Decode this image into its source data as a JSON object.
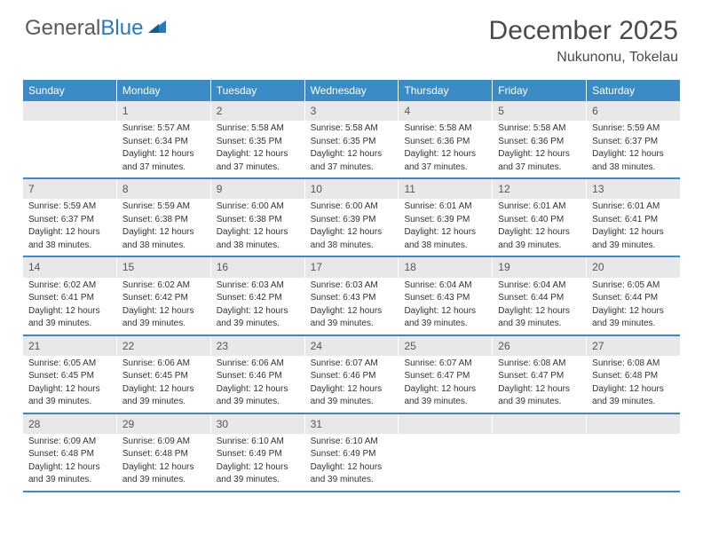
{
  "logo": {
    "part1": "General",
    "part2": "Blue"
  },
  "title": "December 2025",
  "location": "Nukunonu, Tokelau",
  "colors": {
    "header_bg": "#3b8bc6",
    "header_text": "#ffffff",
    "daynum_bg": "#e8e8e8",
    "week_border": "#3b8bc6",
    "body_text": "#333333",
    "title_text": "#4a4a4a"
  },
  "day_names": [
    "Sunday",
    "Monday",
    "Tuesday",
    "Wednesday",
    "Thursday",
    "Friday",
    "Saturday"
  ],
  "weeks": [
    [
      null,
      {
        "n": "1",
        "sr": "Sunrise: 5:57 AM",
        "ss": "Sunset: 6:34 PM",
        "d1": "Daylight: 12 hours",
        "d2": "and 37 minutes."
      },
      {
        "n": "2",
        "sr": "Sunrise: 5:58 AM",
        "ss": "Sunset: 6:35 PM",
        "d1": "Daylight: 12 hours",
        "d2": "and 37 minutes."
      },
      {
        "n": "3",
        "sr": "Sunrise: 5:58 AM",
        "ss": "Sunset: 6:35 PM",
        "d1": "Daylight: 12 hours",
        "d2": "and 37 minutes."
      },
      {
        "n": "4",
        "sr": "Sunrise: 5:58 AM",
        "ss": "Sunset: 6:36 PM",
        "d1": "Daylight: 12 hours",
        "d2": "and 37 minutes."
      },
      {
        "n": "5",
        "sr": "Sunrise: 5:58 AM",
        "ss": "Sunset: 6:36 PM",
        "d1": "Daylight: 12 hours",
        "d2": "and 37 minutes."
      },
      {
        "n": "6",
        "sr": "Sunrise: 5:59 AM",
        "ss": "Sunset: 6:37 PM",
        "d1": "Daylight: 12 hours",
        "d2": "and 38 minutes."
      }
    ],
    [
      {
        "n": "7",
        "sr": "Sunrise: 5:59 AM",
        "ss": "Sunset: 6:37 PM",
        "d1": "Daylight: 12 hours",
        "d2": "and 38 minutes."
      },
      {
        "n": "8",
        "sr": "Sunrise: 5:59 AM",
        "ss": "Sunset: 6:38 PM",
        "d1": "Daylight: 12 hours",
        "d2": "and 38 minutes."
      },
      {
        "n": "9",
        "sr": "Sunrise: 6:00 AM",
        "ss": "Sunset: 6:38 PM",
        "d1": "Daylight: 12 hours",
        "d2": "and 38 minutes."
      },
      {
        "n": "10",
        "sr": "Sunrise: 6:00 AM",
        "ss": "Sunset: 6:39 PM",
        "d1": "Daylight: 12 hours",
        "d2": "and 38 minutes."
      },
      {
        "n": "11",
        "sr": "Sunrise: 6:01 AM",
        "ss": "Sunset: 6:39 PM",
        "d1": "Daylight: 12 hours",
        "d2": "and 38 minutes."
      },
      {
        "n": "12",
        "sr": "Sunrise: 6:01 AM",
        "ss": "Sunset: 6:40 PM",
        "d1": "Daylight: 12 hours",
        "d2": "and 39 minutes."
      },
      {
        "n": "13",
        "sr": "Sunrise: 6:01 AM",
        "ss": "Sunset: 6:41 PM",
        "d1": "Daylight: 12 hours",
        "d2": "and 39 minutes."
      }
    ],
    [
      {
        "n": "14",
        "sr": "Sunrise: 6:02 AM",
        "ss": "Sunset: 6:41 PM",
        "d1": "Daylight: 12 hours",
        "d2": "and 39 minutes."
      },
      {
        "n": "15",
        "sr": "Sunrise: 6:02 AM",
        "ss": "Sunset: 6:42 PM",
        "d1": "Daylight: 12 hours",
        "d2": "and 39 minutes."
      },
      {
        "n": "16",
        "sr": "Sunrise: 6:03 AM",
        "ss": "Sunset: 6:42 PM",
        "d1": "Daylight: 12 hours",
        "d2": "and 39 minutes."
      },
      {
        "n": "17",
        "sr": "Sunrise: 6:03 AM",
        "ss": "Sunset: 6:43 PM",
        "d1": "Daylight: 12 hours",
        "d2": "and 39 minutes."
      },
      {
        "n": "18",
        "sr": "Sunrise: 6:04 AM",
        "ss": "Sunset: 6:43 PM",
        "d1": "Daylight: 12 hours",
        "d2": "and 39 minutes."
      },
      {
        "n": "19",
        "sr": "Sunrise: 6:04 AM",
        "ss": "Sunset: 6:44 PM",
        "d1": "Daylight: 12 hours",
        "d2": "and 39 minutes."
      },
      {
        "n": "20",
        "sr": "Sunrise: 6:05 AM",
        "ss": "Sunset: 6:44 PM",
        "d1": "Daylight: 12 hours",
        "d2": "and 39 minutes."
      }
    ],
    [
      {
        "n": "21",
        "sr": "Sunrise: 6:05 AM",
        "ss": "Sunset: 6:45 PM",
        "d1": "Daylight: 12 hours",
        "d2": "and 39 minutes."
      },
      {
        "n": "22",
        "sr": "Sunrise: 6:06 AM",
        "ss": "Sunset: 6:45 PM",
        "d1": "Daylight: 12 hours",
        "d2": "and 39 minutes."
      },
      {
        "n": "23",
        "sr": "Sunrise: 6:06 AM",
        "ss": "Sunset: 6:46 PM",
        "d1": "Daylight: 12 hours",
        "d2": "and 39 minutes."
      },
      {
        "n": "24",
        "sr": "Sunrise: 6:07 AM",
        "ss": "Sunset: 6:46 PM",
        "d1": "Daylight: 12 hours",
        "d2": "and 39 minutes."
      },
      {
        "n": "25",
        "sr": "Sunrise: 6:07 AM",
        "ss": "Sunset: 6:47 PM",
        "d1": "Daylight: 12 hours",
        "d2": "and 39 minutes."
      },
      {
        "n": "26",
        "sr": "Sunrise: 6:08 AM",
        "ss": "Sunset: 6:47 PM",
        "d1": "Daylight: 12 hours",
        "d2": "and 39 minutes."
      },
      {
        "n": "27",
        "sr": "Sunrise: 6:08 AM",
        "ss": "Sunset: 6:48 PM",
        "d1": "Daylight: 12 hours",
        "d2": "and 39 minutes."
      }
    ],
    [
      {
        "n": "28",
        "sr": "Sunrise: 6:09 AM",
        "ss": "Sunset: 6:48 PM",
        "d1": "Daylight: 12 hours",
        "d2": "and 39 minutes."
      },
      {
        "n": "29",
        "sr": "Sunrise: 6:09 AM",
        "ss": "Sunset: 6:48 PM",
        "d1": "Daylight: 12 hours",
        "d2": "and 39 minutes."
      },
      {
        "n": "30",
        "sr": "Sunrise: 6:10 AM",
        "ss": "Sunset: 6:49 PM",
        "d1": "Daylight: 12 hours",
        "d2": "and 39 minutes."
      },
      {
        "n": "31",
        "sr": "Sunrise: 6:10 AM",
        "ss": "Sunset: 6:49 PM",
        "d1": "Daylight: 12 hours",
        "d2": "and 39 minutes."
      },
      null,
      null,
      null
    ]
  ]
}
